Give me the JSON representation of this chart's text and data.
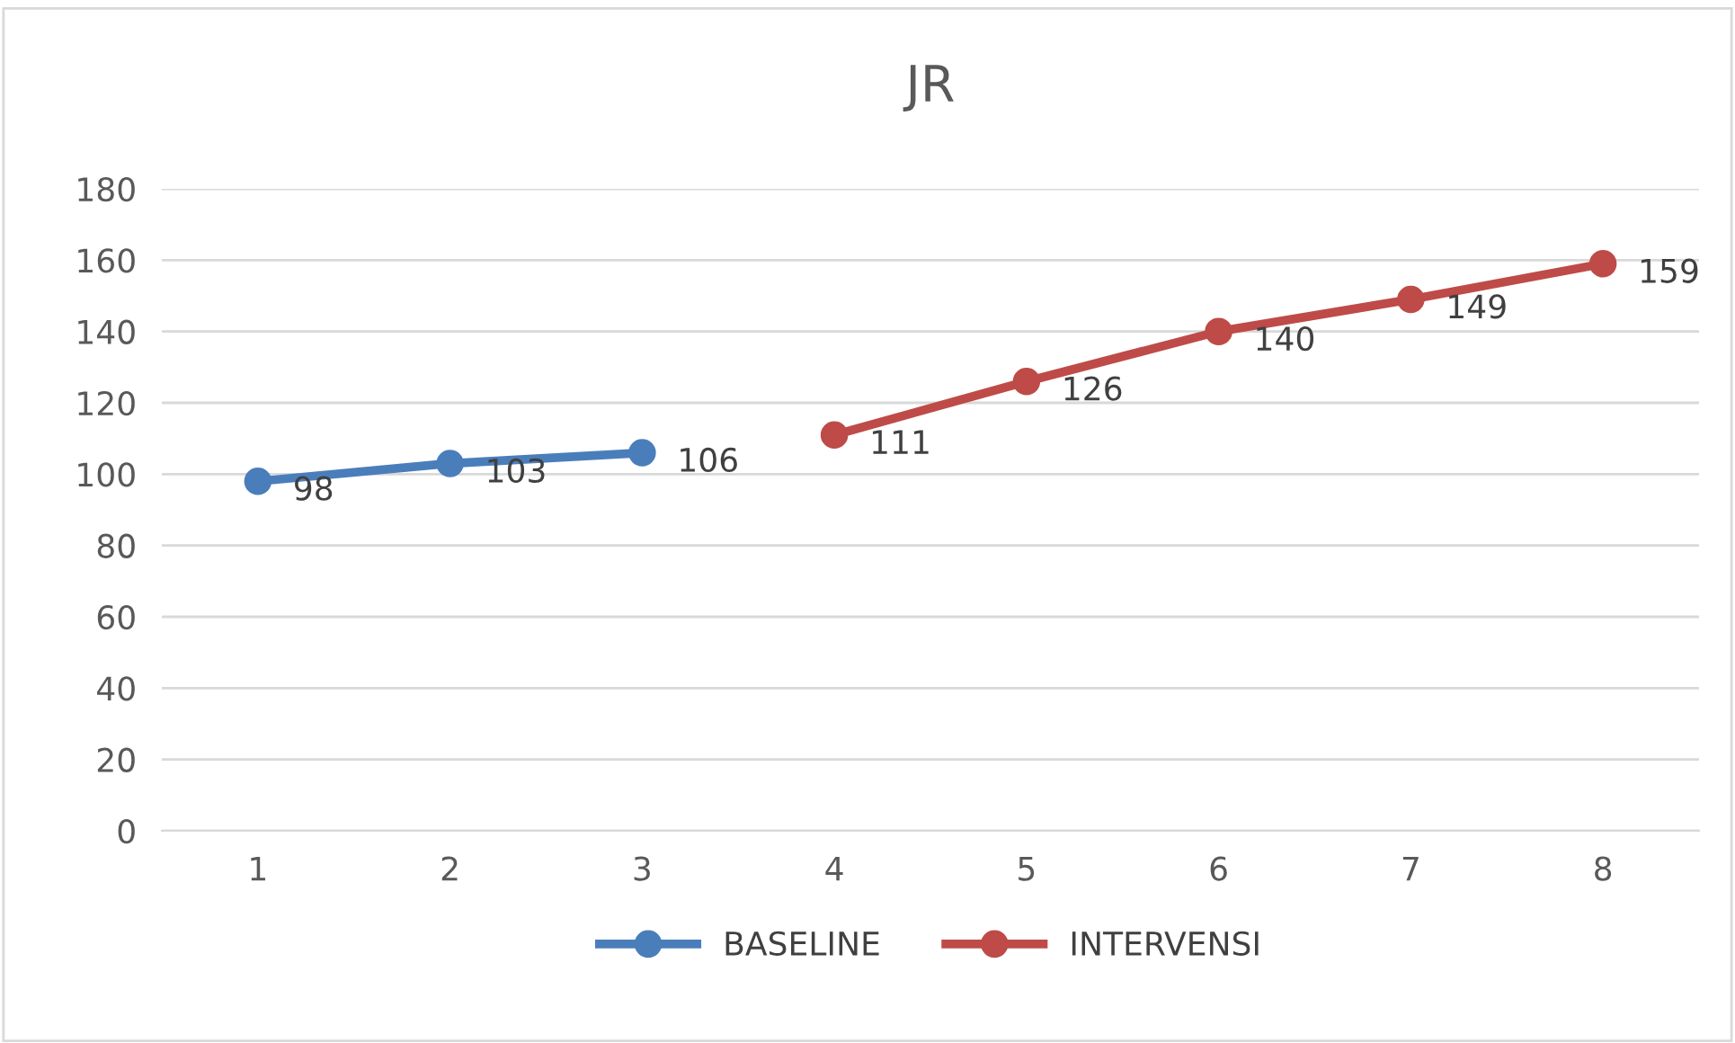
{
  "chart_data": {
    "type": "line",
    "title": "JR",
    "categories": [
      "1",
      "2",
      "3",
      "4",
      "5",
      "6",
      "7",
      "8"
    ],
    "series": [
      {
        "name": "BASELINE",
        "color": "#4a7ebb",
        "values": [
          98,
          103,
          106,
          null,
          null,
          null,
          null,
          null
        ]
      },
      {
        "name": "INTERVENSI",
        "color": "#be4b48",
        "values": [
          null,
          null,
          null,
          111,
          126,
          140,
          149,
          159
        ]
      }
    ],
    "ylim": [
      0,
      180
    ],
    "yticks": [
      0,
      20,
      40,
      60,
      80,
      100,
      120,
      140,
      160,
      180
    ],
    "grid": "y",
    "legend": "bottom",
    "marker": "circle",
    "line_style": "solid",
    "data_labels": true
  }
}
